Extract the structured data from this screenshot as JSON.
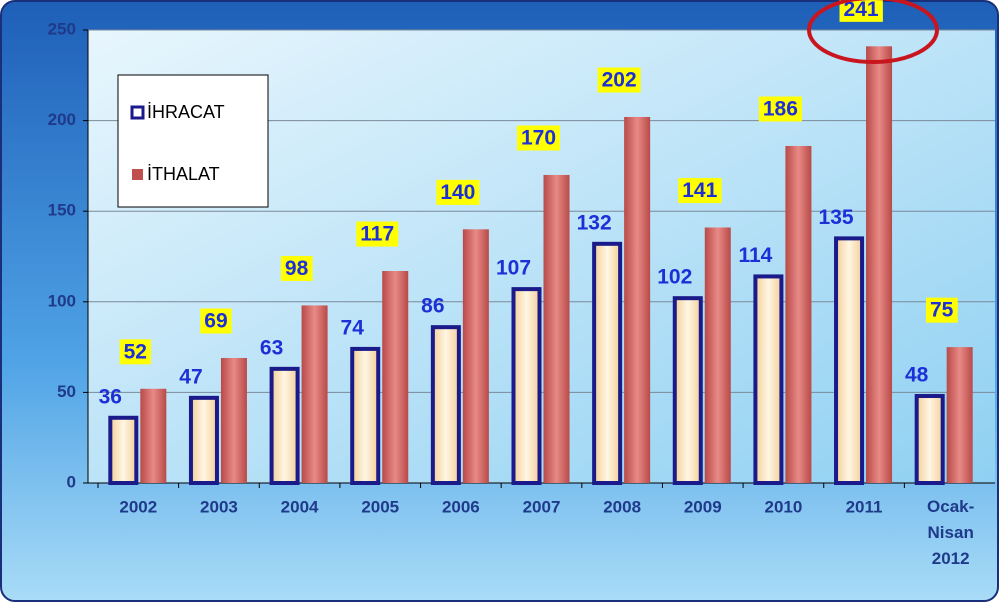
{
  "chart_data": {
    "type": "bar",
    "categories": [
      "2002",
      "2003",
      "2004",
      "2005",
      "2006",
      "2007",
      "2008",
      "2009",
      "2010",
      "2011",
      "Ocak-Nisan 2012"
    ],
    "series": [
      {
        "name": "İHRACAT",
        "color": "#f7dcb0",
        "values": [
          36,
          47,
          63,
          74,
          86,
          107,
          132,
          102,
          114,
          135,
          48
        ]
      },
      {
        "name": "İTHALAT",
        "color": "#c0504d",
        "values": [
          52,
          69,
          98,
          117,
          140,
          170,
          202,
          141,
          186,
          241,
          75
        ]
      }
    ],
    "ylim": [
      0,
      250
    ],
    "yticks": [
      0,
      50,
      100,
      150,
      200,
      250
    ],
    "grid": true,
    "legend": "upper left"
  }
}
